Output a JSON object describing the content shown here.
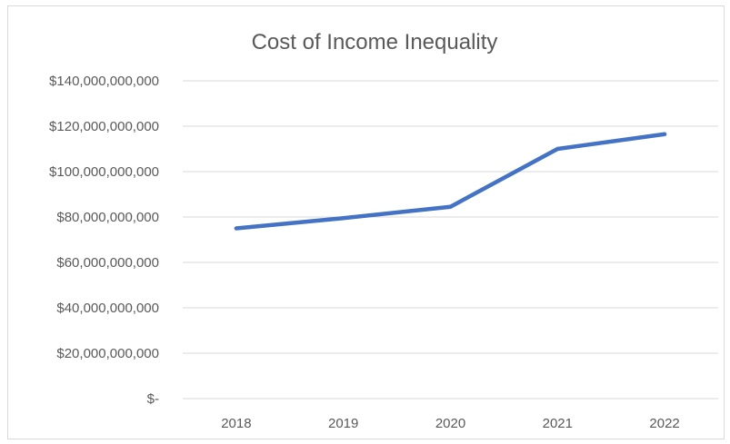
{
  "chart_data": {
    "type": "line",
    "title": "Cost of Income Inequality",
    "xlabel": "",
    "ylabel": "",
    "categories": [
      "2018",
      "2019",
      "2020",
      "2021",
      "2022"
    ],
    "series": [
      {
        "values": [
          75000000000,
          79500000000,
          84500000000,
          110000000000,
          116500000000
        ],
        "color": "#4472c4"
      }
    ],
    "ylim": [
      0,
      140000000000
    ],
    "y_ticks": [
      0,
      20000000000,
      40000000000,
      60000000000,
      80000000000,
      100000000000,
      120000000000,
      140000000000
    ],
    "y_tick_labels": [
      "$-",
      "$20,000,000,000",
      "$40,000,000,000",
      "$60,000,000,000",
      "$80,000,000,000",
      "$100,000,000,000",
      "$120,000,000,000",
      "$140,000,000,000"
    ],
    "grid": true,
    "legend": "none"
  }
}
